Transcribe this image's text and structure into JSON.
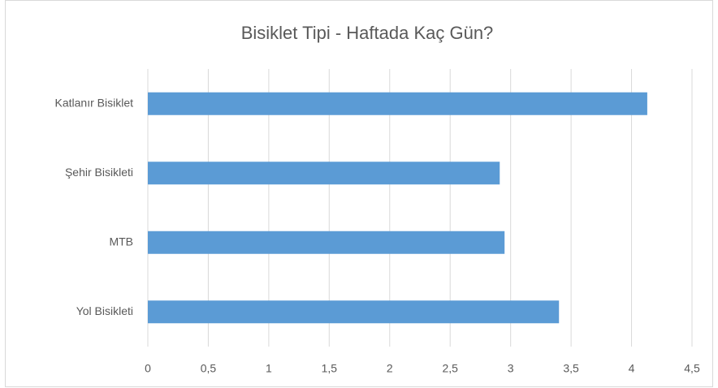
{
  "chart_data": {
    "type": "bar",
    "orientation": "horizontal",
    "title": "Bisiklet Tipi - Haftada Kaç Gün?",
    "categories": [
      "Katlanır Bisiklet",
      "Şehir Bisikleti",
      "MTB",
      "Yol Bisikleti"
    ],
    "values": [
      4.13,
      2.91,
      2.95,
      3.4
    ],
    "color": "#5b9bd5",
    "xlim": [
      0,
      4.5
    ],
    "xticks": [
      0,
      {
        "value": 0.5,
        "label": "0,5"
      },
      1,
      {
        "value": 1.5,
        "label": "1,5"
      },
      2,
      {
        "value": 2.5,
        "label": "2,5"
      },
      3,
      {
        "value": 3.5,
        "label": "3,5"
      },
      4,
      {
        "value": 4.5,
        "label": "4,5"
      }
    ],
    "grid": true
  }
}
